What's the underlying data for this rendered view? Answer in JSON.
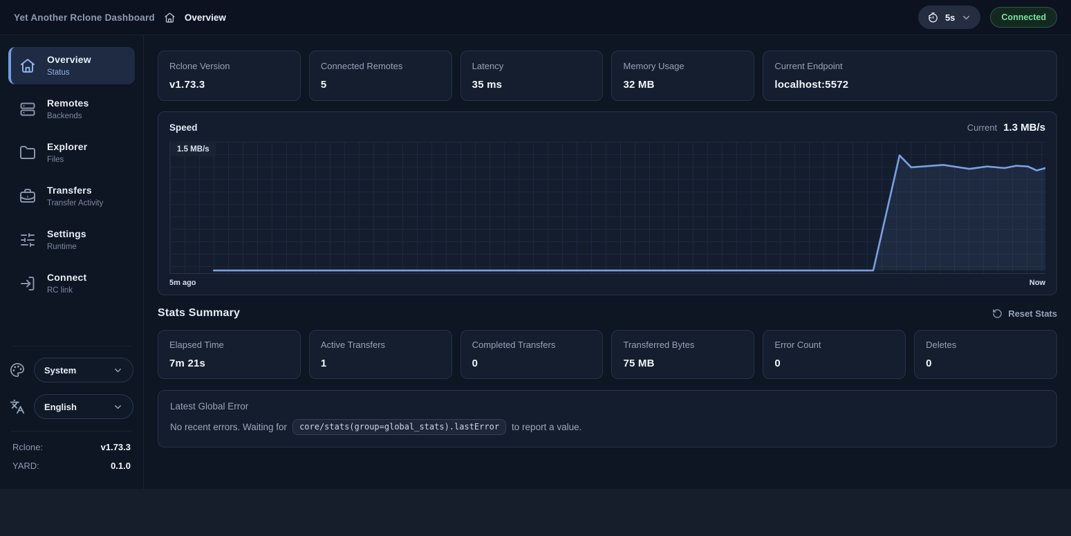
{
  "colors": {
    "accent_blue": "#7aa0e4",
    "accent_bar": "#6d9ee8",
    "connected_green": "#7cdfa1",
    "connected_border": "#2d5a41"
  },
  "topbar": {
    "brand": "Yet Another Rclone Dashboard",
    "breadcrumb_current": "Overview",
    "refresh_interval": "5s",
    "connection_status": "Connected"
  },
  "sidebar": {
    "items": [
      {
        "label": "Overview",
        "sub": "Status",
        "icon": "home-icon",
        "active": true
      },
      {
        "label": "Remotes",
        "sub": "Backends",
        "icon": "server-icon",
        "active": false
      },
      {
        "label": "Explorer",
        "sub": "Files",
        "icon": "folder-icon",
        "active": false
      },
      {
        "label": "Transfers",
        "sub": "Transfer Activity",
        "icon": "briefcase-icon",
        "active": false
      },
      {
        "label": "Settings",
        "sub": "Runtime",
        "icon": "sliders-icon",
        "active": false
      },
      {
        "label": "Connect",
        "sub": "RC link",
        "icon": "login-icon",
        "active": false
      }
    ],
    "theme_select": {
      "value": "System",
      "icon": "palette-icon"
    },
    "language_select": {
      "value": "English",
      "icon": "languages-icon"
    },
    "versions": [
      {
        "label": "Rclone:",
        "value": "v1.73.3"
      },
      {
        "label": "YARD:",
        "value": "0.1.0"
      }
    ]
  },
  "status_cards": [
    {
      "label": "Rclone Version",
      "value": "v1.73.3",
      "wide": false
    },
    {
      "label": "Connected Remotes",
      "value": "5",
      "wide": false
    },
    {
      "label": "Latency",
      "value": "35 ms",
      "wide": false
    },
    {
      "label": "Memory Usage",
      "value": "32 MB",
      "wide": false
    },
    {
      "label": "Current Endpoint",
      "value": "localhost:5572",
      "wide": true
    }
  ],
  "speed_panel": {
    "title": "Speed",
    "current_label": "Current",
    "current_value": "1.3 MB/s",
    "y_max_label": "1.5 MB/s",
    "x_start_label": "5m ago",
    "x_end_label": "Now"
  },
  "chart_data": {
    "type": "area",
    "title": "Speed",
    "ylabel": "MB/s",
    "ylim": [
      0,
      1.5
    ],
    "x_seconds_range": [
      -300,
      0
    ],
    "x_tick_labels": [
      "5m ago",
      "Now"
    ],
    "grid": true,
    "legend": false,
    "current_value_mbps": 1.3,
    "points": [
      [
        -285,
        0
      ],
      [
        -59,
        0
      ],
      [
        -50,
        1.45
      ],
      [
        -46,
        1.3
      ],
      [
        -35,
        1.33
      ],
      [
        -26,
        1.28
      ],
      [
        -20,
        1.31
      ],
      [
        -14,
        1.29
      ],
      [
        -10,
        1.32
      ],
      [
        -6,
        1.31
      ],
      [
        -3,
        1.26
      ],
      [
        0,
        1.29
      ]
    ]
  },
  "stats_summary": {
    "title": "Stats Summary",
    "reset_label": "Reset Stats",
    "cards": [
      {
        "label": "Elapsed Time",
        "value": "7m 21s"
      },
      {
        "label": "Active Transfers",
        "value": "1"
      },
      {
        "label": "Completed Transfers",
        "value": "0"
      },
      {
        "label": "Transferred Bytes",
        "value": "75 MB"
      },
      {
        "label": "Error Count",
        "value": "0"
      },
      {
        "label": "Deletes",
        "value": "0"
      }
    ]
  },
  "error_panel": {
    "title": "Latest Global Error",
    "text_before": "No recent errors. Waiting for",
    "code": "core/stats(group=global_stats).lastError",
    "text_after": "to report a value."
  }
}
